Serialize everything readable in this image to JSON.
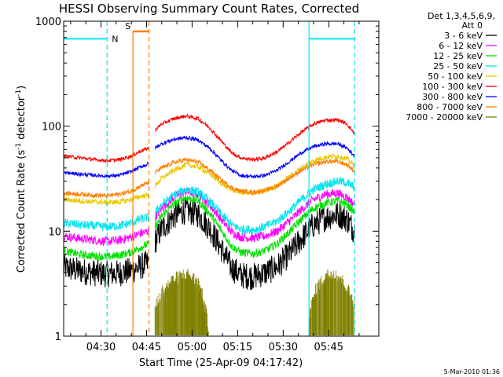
{
  "chart_data": {
    "type": "line",
    "title": "HESSI Observing Summary Count Rates, Corrected",
    "xlabel": "Start Time (25-Apr-09 04:17:42)",
    "ylabel": "Corrected Count Rate (s",
    "ylabel_sup1": "-1",
    "ylabel_mid": " detector",
    "ylabel_sup2": "-1",
    "ylabel_end": ")",
    "y_scale": "log",
    "ylim": [
      1,
      1000
    ],
    "xlim_minutes_of_day": [
      257.7,
      361.5
    ],
    "x_ticks": [
      {
        "value": 270,
        "label": "04:30"
      },
      {
        "value": 285,
        "label": "04:45"
      },
      {
        "value": 300,
        "label": "05:00"
      },
      {
        "value": 315,
        "label": "05:15"
      },
      {
        "value": 330,
        "label": "05:30"
      },
      {
        "value": 345,
        "label": "05:45"
      }
    ],
    "y_ticks": [
      {
        "value": 1,
        "label": "1"
      },
      {
        "value": 10,
        "label": "10"
      },
      {
        "value": 100,
        "label": "100"
      },
      {
        "value": 1000,
        "label": "1000"
      }
    ],
    "legend": {
      "header1": "Det 1,3,4,5,6,9,",
      "header2": "Att 0",
      "placement": "right"
    },
    "night_markers": {
      "color": "#00e5ee",
      "intervals": [
        [
          257.7,
          272.0
        ],
        [
          338.5,
          353.5
        ]
      ],
      "level": 680,
      "label": "N"
    },
    "saa_markers": {
      "color": "#ff7f00",
      "intervals": [
        [
          280.5,
          285.8
        ]
      ],
      "level": 800,
      "label": "S"
    },
    "gap": [
      285.8,
      287.8
    ],
    "series": [
      {
        "name": "3 - 6 keV",
        "color": "#000000",
        "noise": 0.3,
        "x": [
          257.7,
          263,
          268,
          272,
          276,
          280,
          283,
          285.8,
          287.8,
          290,
          294,
          298,
          302,
          306,
          310,
          313,
          316,
          320,
          324,
          328,
          332,
          336,
          340,
          344,
          348,
          351,
          353.5
        ],
        "y": [
          4.5,
          4.2,
          4.0,
          3.9,
          4.0,
          4.2,
          4.6,
          5.0,
          8.0,
          10.5,
          14.0,
          15.8,
          14.5,
          10.5,
          6.5,
          4.5,
          3.8,
          3.7,
          4.0,
          4.6,
          6.0,
          8.5,
          11.5,
          13.5,
          14.5,
          13.0,
          10.0
        ]
      },
      {
        "name": "6 - 12 keV",
        "color": "#ff00ff",
        "noise": 0.1,
        "x": [
          257.7,
          263,
          268,
          272,
          276,
          280,
          283,
          285.8,
          287.8,
          290,
          294,
          298,
          302,
          306,
          310,
          313,
          316,
          320,
          324,
          328,
          332,
          336,
          340,
          344,
          348,
          351,
          353.5
        ],
        "y": [
          9.0,
          8.5,
          8.2,
          8.0,
          8.2,
          8.8,
          9.5,
          10.0,
          13.5,
          16.5,
          21.0,
          24.0,
          22.5,
          17.5,
          12.5,
          9.8,
          8.8,
          8.6,
          9.0,
          10.0,
          12.5,
          16.0,
          20.0,
          22.5,
          23.0,
          21.0,
          18.0
        ]
      },
      {
        "name": "12 - 25 keV",
        "color": "#00e000",
        "noise": 0.09,
        "x": [
          257.7,
          263,
          268,
          272,
          276,
          280,
          283,
          285.8,
          287.8,
          290,
          294,
          298,
          302,
          306,
          310,
          313,
          316,
          320,
          324,
          328,
          332,
          336,
          340,
          344,
          348,
          351,
          353.5
        ],
        "y": [
          6.5,
          6.0,
          5.8,
          5.7,
          5.9,
          6.3,
          7.0,
          7.6,
          11.0,
          14.0,
          18.0,
          21.0,
          19.5,
          14.5,
          9.8,
          7.2,
          6.3,
          6.1,
          6.5,
          7.6,
          9.8,
          13.0,
          16.5,
          18.5,
          19.5,
          18.0,
          15.0
        ]
      },
      {
        "name": "25 - 50 keV",
        "color": "#00e5ee",
        "noise": 0.1,
        "x": [
          257.7,
          263,
          268,
          272,
          276,
          280,
          283,
          285.8,
          287.8,
          290,
          294,
          298,
          302,
          306,
          310,
          313,
          316,
          320,
          324,
          328,
          332,
          336,
          340,
          344,
          348,
          351,
          353.5
        ],
        "y": [
          12.0,
          11.5,
          11.2,
          11.0,
          11.3,
          12.0,
          13.0,
          13.5,
          15.0,
          18.0,
          22.0,
          25.0,
          23.5,
          19.0,
          14.0,
          11.5,
          10.5,
          10.3,
          11.0,
          12.5,
          15.5,
          20.0,
          25.0,
          28.0,
          30.0,
          29.0,
          26.0
        ]
      },
      {
        "name": "50 - 100 keV",
        "color": "#e8c800",
        "noise": 0.06,
        "x": [
          257.7,
          263,
          268,
          272,
          276,
          280,
          283,
          285.8,
          287.8,
          290,
          294,
          298,
          302,
          306,
          310,
          313,
          316,
          320,
          324,
          328,
          332,
          336,
          340,
          344,
          348,
          351,
          353.5
        ],
        "y": [
          20.0,
          19.5,
          19.0,
          18.8,
          19.0,
          20.0,
          21.5,
          22.0,
          27.0,
          32.0,
          38.0,
          43.0,
          41.0,
          35.0,
          28.0,
          25.0,
          23.5,
          23.0,
          24.0,
          27.0,
          33.0,
          40.0,
          47.0,
          51.0,
          52.0,
          49.0,
          42.0
        ]
      },
      {
        "name": "100 - 300 keV",
        "color": "#ff0000",
        "noise": 0.04,
        "x": [
          257.7,
          263,
          268,
          272,
          276,
          280,
          283,
          285.8,
          287.8,
          290,
          294,
          298,
          302,
          306,
          310,
          313,
          316,
          320,
          324,
          328,
          332,
          336,
          340,
          344,
          348,
          351,
          353.5
        ],
        "y": [
          52.0,
          50.0,
          48.0,
          47.0,
          48.0,
          52.0,
          58.0,
          62.0,
          92.0,
          105.0,
          118.0,
          125.0,
          118.0,
          95.0,
          70.0,
          56.0,
          50.0,
          48.0,
          50.0,
          57.0,
          70.0,
          88.0,
          105.0,
          114.0,
          115.0,
          105.0,
          85.0
        ]
      },
      {
        "name": "300 - 800 keV",
        "color": "#0000ff",
        "noise": 0.04,
        "x": [
          257.7,
          263,
          268,
          272,
          276,
          280,
          283,
          285.8,
          287.8,
          290,
          294,
          298,
          302,
          306,
          310,
          313,
          316,
          320,
          324,
          328,
          332,
          336,
          340,
          344,
          348,
          351,
          353.5
        ],
        "y": [
          36.0,
          35.0,
          34.0,
          33.5,
          34.0,
          37.0,
          41.0,
          44.0,
          62.0,
          68.0,
          75.0,
          78.0,
          74.0,
          61.0,
          46.0,
          38.0,
          34.0,
          33.0,
          34.0,
          38.0,
          46.0,
          56.0,
          64.0,
          68.0,
          68.0,
          62.0,
          52.0
        ]
      },
      {
        "name": "800 - 7000 keV",
        "color": "#ff7f00",
        "noise": 0.05,
        "x": [
          257.7,
          263,
          268,
          272,
          276,
          280,
          283,
          285.8,
          287.8,
          290,
          294,
          298,
          302,
          306,
          310,
          313,
          316,
          320,
          324,
          328,
          332,
          336,
          340,
          344,
          348,
          351,
          353.5
        ],
        "y": [
          23.0,
          22.5,
          22.0,
          21.8,
          22.5,
          24.0,
          27.0,
          29.0,
          36.0,
          40.0,
          45.0,
          48.0,
          45.5,
          38.0,
          30.0,
          26.0,
          24.0,
          23.5,
          24.5,
          27.0,
          32.0,
          38.0,
          43.0,
          46.0,
          46.0,
          43.0,
          37.0
        ]
      },
      {
        "name": "7000 - 20000 keV",
        "color": "#808000",
        "noise": 0,
        "x": [
          287.8,
          290,
          294,
          298,
          302,
          304,
          305.5,
          338.5,
          341,
          344,
          347,
          350,
          353.5
        ],
        "y": [
          1.6,
          2.3,
          3.0,
          3.4,
          2.8,
          1.8,
          1.0,
          1.4,
          2.5,
          3.2,
          3.5,
          2.8,
          1.8
        ]
      }
    ],
    "footer_stamp": "5-Mar-2010 01:36"
  }
}
